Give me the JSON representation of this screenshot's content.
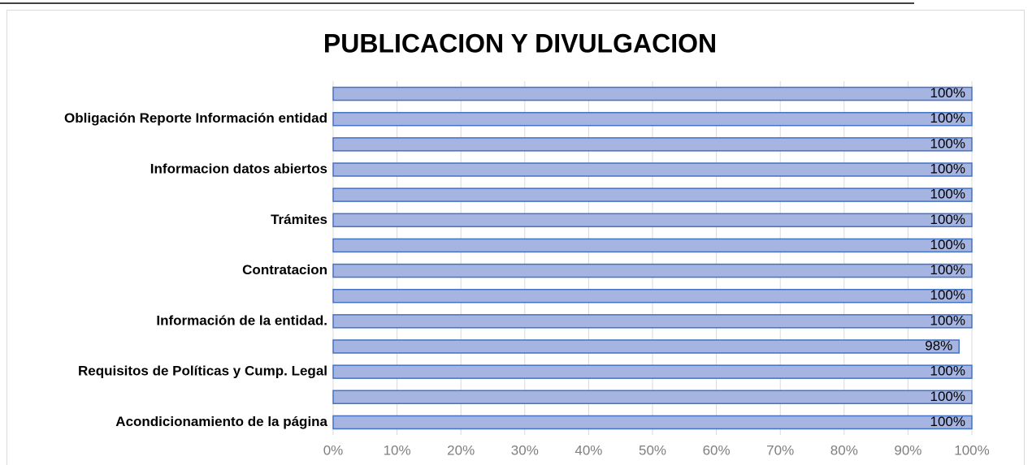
{
  "chart_data": {
    "type": "bar",
    "orientation": "horizontal",
    "title": "PUBLICACION Y DIVULGACION",
    "categories": [
      "Acondicionamiento de la página",
      null,
      "Requisitos de Políticas y Cump. Legal ",
      null,
      "Información de la entidad.",
      null,
      "Contratacion",
      null,
      "Trámites",
      null,
      "Informacion datos abiertos",
      null,
      "Obligación Reporte Información entidad",
      null
    ],
    "values": [
      100,
      100,
      100,
      98,
      100,
      100,
      100,
      100,
      100,
      100,
      100,
      100,
      100,
      100
    ],
    "value_labels": [
      "100%",
      "100%",
      "100%",
      "98%",
      "100%",
      "100%",
      "100%",
      "100%",
      "100%",
      "100%",
      "100%",
      "100%",
      "100%",
      "100%"
    ],
    "color": "#a5b4e0",
    "edge_color": "#4472c4",
    "xlim": [
      0,
      100
    ],
    "xticks": [
      {
        "value": 0,
        "label": "0%"
      },
      {
        "value": 10,
        "label": "10%"
      },
      {
        "value": 20,
        "label": "20%"
      },
      {
        "value": 30,
        "label": "30%"
      },
      {
        "value": 40,
        "label": "40%"
      },
      {
        "value": 50,
        "label": "50%"
      },
      {
        "value": 60,
        "label": "60%"
      },
      {
        "value": 70,
        "label": "70%"
      },
      {
        "value": 80,
        "label": "80%"
      },
      {
        "value": 90,
        "label": "90%"
      },
      {
        "value": 100,
        "label": "100%"
      }
    ],
    "grid": true
  }
}
